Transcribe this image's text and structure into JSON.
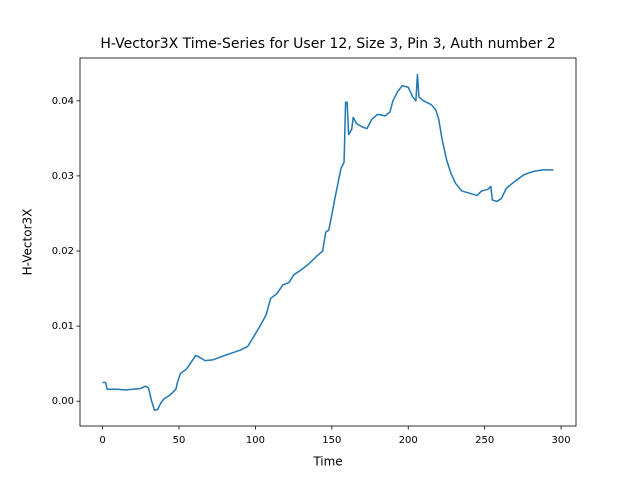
{
  "chart_data": {
    "type": "line",
    "title": "H-Vector3X Time-Series for User 12, Size 3, Pin 3, Auth number 2",
    "x_label": "Time",
    "y_label": "H-Vector3X",
    "x": [
      0,
      2,
      3,
      10,
      15,
      20,
      25,
      28,
      30,
      32,
      34,
      36,
      38,
      40,
      44,
      48,
      49,
      51,
      55,
      58,
      61,
      64,
      67,
      72,
      80,
      90,
      95,
      98,
      103,
      107,
      110,
      114,
      118,
      122,
      125,
      130,
      135,
      140,
      144,
      146,
      148,
      150,
      152,
      154,
      156,
      158,
      159,
      160,
      161,
      163,
      164,
      166,
      170,
      173,
      176,
      180,
      185,
      188,
      190,
      193,
      196,
      200,
      203,
      205,
      206,
      207,
      210,
      215,
      218,
      220,
      222,
      225,
      228,
      231,
      235,
      240,
      245,
      248,
      252,
      254,
      255,
      258,
      261,
      264,
      268,
      272,
      276,
      282,
      288,
      295
    ],
    "series": [
      {
        "name": "H-Vector3X",
        "color": "#1f77b4",
        "values": [
          0.0025,
          0.0025,
          0.0016,
          0.0016,
          0.0015,
          0.0016,
          0.0017,
          0.002,
          0.0018,
          0.0001,
          -0.0012,
          -0.0011,
          -0.0003,
          0.0003,
          0.0008,
          0.0016,
          0.0025,
          0.0037,
          0.0043,
          0.0052,
          0.0061,
          0.0058,
          0.0054,
          0.0055,
          0.0061,
          0.0068,
          0.0073,
          0.0083,
          0.01,
          0.0115,
          0.0137,
          0.0143,
          0.0155,
          0.0158,
          0.0168,
          0.0175,
          0.0183,
          0.0193,
          0.02,
          0.0225,
          0.0228,
          0.0248,
          0.027,
          0.029,
          0.031,
          0.0318,
          0.0398,
          0.0398,
          0.0355,
          0.0362,
          0.0378,
          0.037,
          0.0365,
          0.0363,
          0.0375,
          0.0382,
          0.038,
          0.0385,
          0.04,
          0.0412,
          0.042,
          0.0418,
          0.0405,
          0.04,
          0.0435,
          0.0405,
          0.04,
          0.0395,
          0.0388,
          0.0375,
          0.035,
          0.0322,
          0.0303,
          0.029,
          0.028,
          0.0277,
          0.0274,
          0.028,
          0.0282,
          0.0286,
          0.0268,
          0.0266,
          0.027,
          0.0283,
          0.029,
          0.0296,
          0.0302,
          0.0306,
          0.0308,
          0.0308
        ]
      }
    ],
    "xlim": [
      -14.75,
      309.75
    ],
    "xticks": [
      0,
      50,
      100,
      150,
      200,
      250,
      300
    ],
    "ylim": [
      -0.0033,
      0.0457
    ],
    "yticks": [
      {
        "value": 0,
        "label": "0.00"
      },
      0.01,
      0.02,
      0.03,
      0.04
    ]
  }
}
